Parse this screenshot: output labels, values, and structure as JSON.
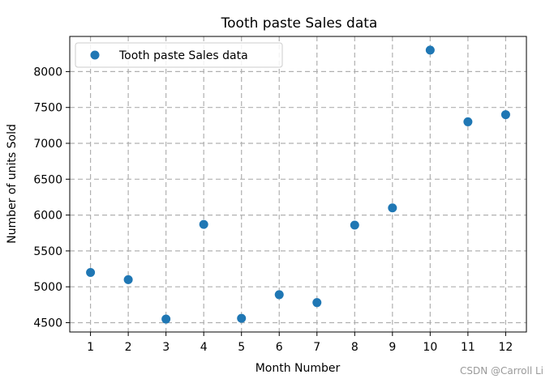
{
  "chart_data": {
    "type": "scatter",
    "title": "Tooth paste Sales data",
    "xlabel": "Month Number",
    "ylabel": "Number of units Sold",
    "x": [
      1,
      2,
      3,
      4,
      5,
      6,
      7,
      8,
      9,
      10,
      11,
      12
    ],
    "series": [
      {
        "name": "Tooth paste Sales data",
        "values": [
          5200,
          5100,
          4550,
          5870,
          4560,
          4890,
          4780,
          5860,
          6100,
          8300,
          7300,
          7400
        ],
        "color": "#1f77b4"
      }
    ],
    "xticks": [
      1,
      2,
      3,
      4,
      5,
      6,
      7,
      8,
      9,
      10,
      11,
      12
    ],
    "yticks": [
      4500,
      5000,
      5500,
      6000,
      6500,
      7000,
      7500,
      8000
    ],
    "xlim": [
      0.45,
      12.55
    ],
    "ylim": [
      4370,
      8490
    ],
    "grid": true,
    "grid_style": "dashed",
    "legend_position": "upper-left"
  },
  "watermark": "CSDN @Carroll Li"
}
